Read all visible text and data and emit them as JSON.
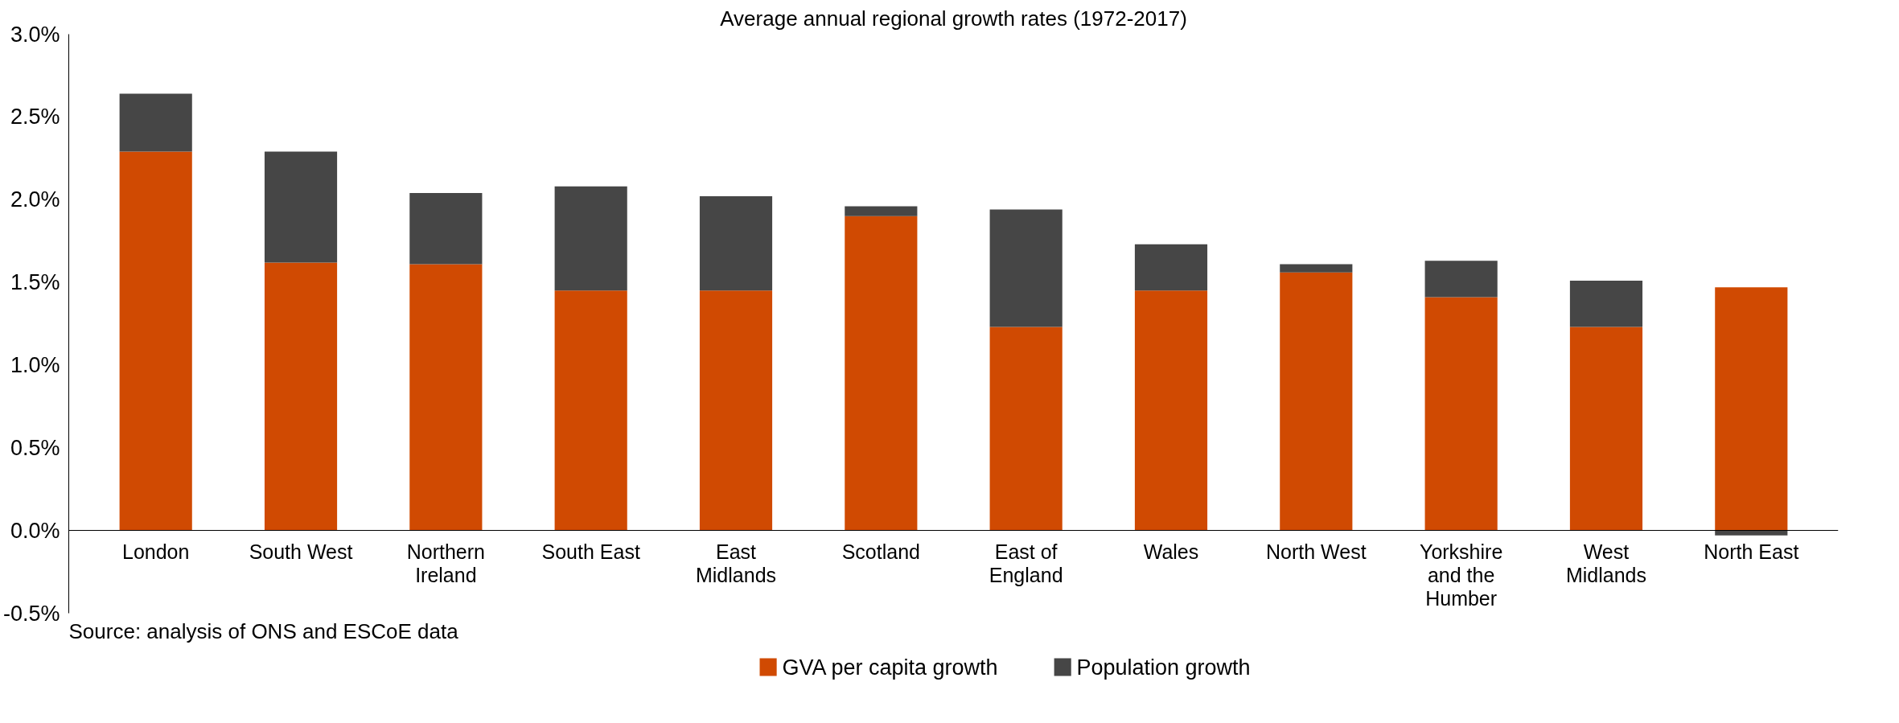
{
  "chart_data": {
    "type": "bar",
    "stacked": true,
    "title": "Average annual regional growth rates (1972-2017)",
    "categories": [
      "London",
      "South West",
      "Northern Ireland",
      "South East",
      "East Midlands",
      "Scotland",
      "East of England",
      "Wales",
      "North West",
      "Yorkshire and the Humber",
      "West Midlands",
      "North East"
    ],
    "series": [
      {
        "name": "GVA per capita growth",
        "color": "#d04a02",
        "values": [
          2.29,
          1.62,
          1.61,
          1.45,
          1.45,
          1.9,
          1.23,
          1.45,
          1.56,
          1.41,
          1.23,
          1.47
        ]
      },
      {
        "name": "Population growth",
        "color": "#464646",
        "values": [
          0.35,
          0.67,
          0.43,
          0.63,
          0.57,
          0.06,
          0.71,
          0.28,
          0.05,
          0.22,
          0.28,
          -0.03
        ]
      }
    ],
    "ylim": [
      -0.5,
      3.0
    ],
    "yticks": [
      {
        "value": -0.5,
        "label": "-0.5%"
      },
      {
        "value": 0,
        "label": "0.0%"
      },
      {
        "value": 0.5,
        "label": "0.5%"
      },
      {
        "value": 1.0,
        "label": "1.0%"
      },
      {
        "value": 1.5,
        "label": "1.5%"
      },
      {
        "value": 2.0,
        "label": "2.0%"
      },
      {
        "value": 2.5,
        "label": "2.5%"
      },
      {
        "value": 3.0,
        "label": "3.0%"
      }
    ],
    "grid": false,
    "legend": "bottom",
    "annotations": [
      "Source: analysis of ONS and ESCoE data"
    ]
  }
}
